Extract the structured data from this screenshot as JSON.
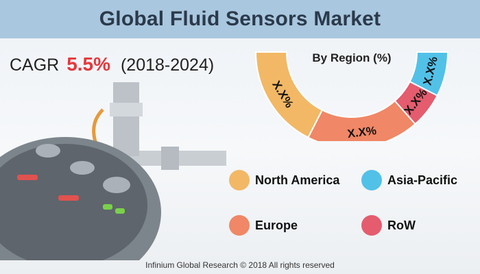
{
  "title": "Global Fluid Sensors Market",
  "cagr": {
    "label": "CAGR",
    "value": "5.5%",
    "period": "(2018-2024)"
  },
  "chart_data": {
    "type": "pie",
    "title": "By Region (%)",
    "categories": [
      "North America",
      "Europe",
      "RoW",
      "Asia-Pacific"
    ],
    "values": [
      35,
      38,
      12,
      15
    ],
    "data_labels": [
      "X.X%",
      "X.X%",
      "X.X%",
      "X.X%"
    ],
    "colors": [
      "#f2b865",
      "#f08766",
      "#e45c6e",
      "#52c1e8"
    ],
    "legend": "bottom"
  },
  "legend": [
    {
      "label": "North America",
      "color": "#f2b865"
    },
    {
      "label": "Asia-Pacific",
      "color": "#52c1e8"
    },
    {
      "label": "Europe",
      "color": "#f08766"
    },
    {
      "label": "RoW",
      "color": "#e45c6e"
    }
  ],
  "footer": "Infinium Global Research © 2018 All rights reserved"
}
